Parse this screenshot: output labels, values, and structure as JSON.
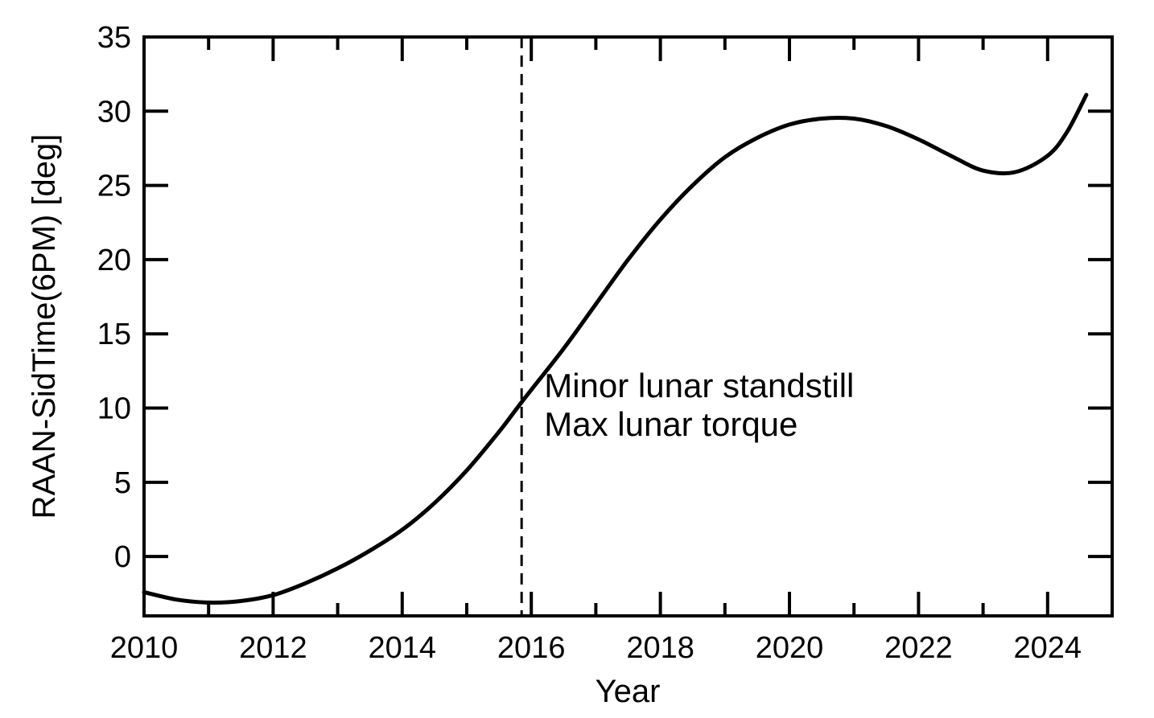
{
  "chart_data": {
    "type": "line",
    "title": "",
    "xlabel": "Year",
    "ylabel": "RAAN-SidTime(6PM) [deg]",
    "xlim": [
      2010,
      2025
    ],
    "ylim": [
      -4,
      35
    ],
    "x_ticks": [
      2010,
      2012,
      2014,
      2016,
      2018,
      2020,
      2022,
      2024
    ],
    "y_ticks": [
      0,
      5,
      10,
      15,
      20,
      25,
      30,
      35
    ],
    "grid": false,
    "series": [
      {
        "name": "",
        "color": "#000000",
        "x": [
          2010.0,
          2010.5,
          2011.0,
          2011.5,
          2012.0,
          2012.5,
          2013.0,
          2013.5,
          2014.0,
          2014.5,
          2015.0,
          2015.5,
          2015.85,
          2016.5,
          2017.0,
          2017.5,
          2018.0,
          2018.5,
          2019.0,
          2019.5,
          2020.0,
          2020.5,
          2021.0,
          2021.5,
          2022.0,
          2022.5,
          2023.0,
          2023.5,
          2024.0,
          2024.3,
          2024.6
        ],
        "y": [
          -2.4,
          -2.9,
          -3.1,
          -3.0,
          -2.6,
          -1.8,
          -0.8,
          0.4,
          1.8,
          3.6,
          5.8,
          8.4,
          10.4,
          14.0,
          17.0,
          20.0,
          22.7,
          25.0,
          26.9,
          28.2,
          29.1,
          29.5,
          29.5,
          29.0,
          28.1,
          27.0,
          26.0,
          25.9,
          27.0,
          28.6,
          31.1
        ]
      }
    ],
    "vlines": [
      {
        "x": 2015.85,
        "style": "dashed",
        "color": "#000000"
      }
    ],
    "annotations": [
      {
        "text": "Minor lunar standstill",
        "x": 2016.2,
        "y": 11.5
      },
      {
        "text": "Max lunar torque",
        "x": 2016.2,
        "y": 8.9
      }
    ]
  }
}
